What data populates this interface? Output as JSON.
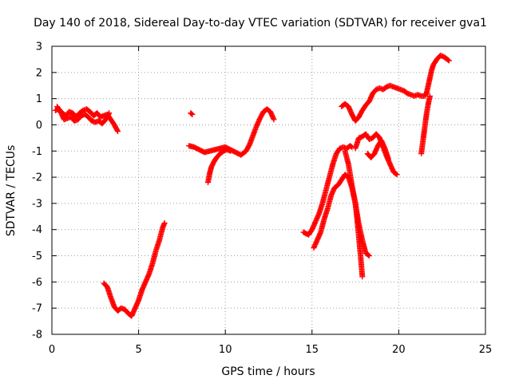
{
  "chart_data": {
    "type": "scatter",
    "title": "Day 140 of 2018, Sidereal Day-to-day VTEC variation (SDTVAR) for receiver gva1",
    "xlabel": "GPS time / hours",
    "ylabel": "SDTVAR / TECUs",
    "xlim": [
      0,
      25
    ],
    "ylim": [
      -8,
      3
    ],
    "xticks": [
      "0",
      "5",
      "10",
      "15",
      "20",
      "25"
    ],
    "yticks": [
      "-8",
      "-7",
      "-6",
      "-5",
      "-4",
      "-3",
      "-2",
      "-1",
      "0",
      "1",
      "2",
      "3"
    ],
    "grid": true,
    "marker": "plus",
    "color": "#ff0000",
    "segments": [
      [
        [
          0.2,
          0.55
        ],
        [
          0.4,
          0.6
        ],
        [
          0.6,
          0.45
        ],
        [
          0.8,
          0.35
        ],
        [
          1.0,
          0.5
        ],
        [
          1.2,
          0.45
        ],
        [
          1.4,
          0.3
        ],
        [
          1.6,
          0.45
        ],
        [
          1.8,
          0.55
        ],
        [
          2.0,
          0.6
        ],
        [
          2.2,
          0.5
        ],
        [
          2.4,
          0.35
        ],
        [
          2.6,
          0.45
        ],
        [
          2.8,
          0.3
        ],
        [
          3.0,
          0.35
        ],
        [
          3.2,
          0.4
        ],
        [
          3.4,
          0.2
        ],
        [
          3.6,
          0.0
        ],
        [
          3.8,
          -0.25
        ]
      ],
      [
        [
          0.3,
          0.7
        ],
        [
          0.5,
          0.5
        ],
        [
          0.7,
          0.2
        ],
        [
          0.9,
          0.25
        ],
        [
          1.1,
          0.3
        ],
        [
          1.3,
          0.15
        ],
        [
          1.5,
          0.2
        ],
        [
          1.7,
          0.35
        ],
        [
          1.9,
          0.4
        ],
        [
          2.1,
          0.3
        ],
        [
          2.3,
          0.15
        ],
        [
          2.5,
          0.1
        ],
        [
          2.7,
          0.15
        ],
        [
          2.9,
          0.05
        ],
        [
          3.1,
          0.2
        ],
        [
          3.3,
          0.45
        ]
      ],
      [
        [
          3.0,
          -6.05
        ],
        [
          3.2,
          -6.2
        ],
        [
          3.4,
          -6.6
        ],
        [
          3.6,
          -6.95
        ],
        [
          3.8,
          -7.1
        ],
        [
          4.0,
          -7.0
        ],
        [
          4.2,
          -7.05
        ],
        [
          4.4,
          -7.2
        ],
        [
          4.6,
          -7.3
        ],
        [
          4.8,
          -7.0
        ],
        [
          5.0,
          -6.7
        ],
        [
          5.2,
          -6.3
        ],
        [
          5.4,
          -6.0
        ],
        [
          5.6,
          -5.7
        ],
        [
          5.8,
          -5.3
        ],
        [
          6.0,
          -4.8
        ],
        [
          6.2,
          -4.4
        ],
        [
          6.4,
          -3.9
        ],
        [
          6.5,
          -3.75
        ]
      ],
      [
        [
          8.0,
          0.45
        ],
        [
          8.1,
          0.4
        ]
      ],
      [
        [
          7.9,
          -0.8
        ],
        [
          8.2,
          -0.85
        ],
        [
          8.5,
          -0.95
        ],
        [
          8.8,
          -1.05
        ],
        [
          9.1,
          -1.0
        ],
        [
          9.4,
          -0.95
        ],
        [
          9.7,
          -0.9
        ],
        [
          10.0,
          -0.85
        ],
        [
          10.3,
          -0.95
        ],
        [
          10.6,
          -1.05
        ],
        [
          10.9,
          -1.15
        ],
        [
          11.2,
          -1.0
        ],
        [
          11.4,
          -0.75
        ],
        [
          11.6,
          -0.4
        ],
        [
          11.8,
          -0.05
        ],
        [
          12.0,
          0.25
        ],
        [
          12.2,
          0.5
        ],
        [
          12.4,
          0.6
        ],
        [
          12.6,
          0.5
        ],
        [
          12.8,
          0.2
        ]
      ],
      [
        [
          9.0,
          -2.2
        ],
        [
          9.1,
          -1.85
        ],
        [
          9.2,
          -1.6
        ],
        [
          9.35,
          -1.4
        ],
        [
          9.5,
          -1.25
        ],
        [
          9.7,
          -1.1
        ],
        [
          9.9,
          -1.0
        ],
        [
          10.1,
          -0.95
        ],
        [
          10.3,
          -1.0
        ]
      ],
      [
        [
          14.5,
          -4.1
        ],
        [
          14.8,
          -4.2
        ],
        [
          15.0,
          -4.0
        ],
        [
          15.2,
          -3.7
        ],
        [
          15.4,
          -3.4
        ],
        [
          15.6,
          -3.0
        ],
        [
          15.8,
          -2.5
        ],
        [
          16.0,
          -2.0
        ],
        [
          16.2,
          -1.5
        ],
        [
          16.4,
          -1.1
        ],
        [
          16.6,
          -0.9
        ],
        [
          16.8,
          -0.85
        ],
        [
          17.0,
          -0.9
        ],
        [
          17.2,
          -0.8
        ],
        [
          17.3,
          -0.85
        ]
      ],
      [
        [
          15.1,
          -4.7
        ],
        [
          15.3,
          -4.4
        ],
        [
          15.5,
          -4.1
        ],
        [
          15.7,
          -3.6
        ],
        [
          15.9,
          -3.2
        ],
        [
          16.1,
          -2.7
        ],
        [
          16.3,
          -2.4
        ],
        [
          16.5,
          -2.3
        ],
        [
          16.7,
          -2.1
        ],
        [
          16.9,
          -1.9
        ],
        [
          17.1,
          -2.0
        ],
        [
          17.3,
          -2.4
        ],
        [
          17.5,
          -3.0
        ],
        [
          17.6,
          -3.6
        ],
        [
          17.7,
          -4.3
        ],
        [
          17.8,
          -5.0
        ],
        [
          17.9,
          -5.8
        ]
      ],
      [
        [
          17.5,
          -0.9
        ],
        [
          17.7,
          -0.5
        ],
        [
          17.9,
          -0.45
        ],
        [
          18.1,
          -0.35
        ],
        [
          18.3,
          -0.55
        ],
        [
          18.5,
          -0.5
        ],
        [
          18.7,
          -0.35
        ],
        [
          18.9,
          -0.5
        ],
        [
          19.1,
          -0.85
        ],
        [
          19.3,
          -1.2
        ],
        [
          19.5,
          -1.5
        ],
        [
          19.7,
          -1.8
        ],
        [
          19.9,
          -1.9
        ]
      ],
      [
        [
          16.9,
          -1.0
        ],
        [
          17.1,
          -1.5
        ],
        [
          17.3,
          -2.3
        ],
        [
          17.5,
          -3.0
        ],
        [
          17.7,
          -3.8
        ],
        [
          17.9,
          -4.4
        ],
        [
          18.1,
          -4.9
        ],
        [
          18.3,
          -5.0
        ]
      ],
      [
        [
          18.2,
          -1.1
        ],
        [
          18.4,
          -1.25
        ],
        [
          18.6,
          -1.1
        ],
        [
          18.8,
          -0.8
        ],
        [
          19.0,
          -0.6
        ],
        [
          19.2,
          -0.9
        ],
        [
          19.4,
          -1.3
        ]
      ],
      [
        [
          16.7,
          0.7
        ],
        [
          16.9,
          0.8
        ],
        [
          17.1,
          0.7
        ],
        [
          17.3,
          0.4
        ],
        [
          17.5,
          0.15
        ],
        [
          17.7,
          0.3
        ],
        [
          17.9,
          0.55
        ],
        [
          18.1,
          0.75
        ],
        [
          18.3,
          0.9
        ],
        [
          18.5,
          1.2
        ],
        [
          18.7,
          1.35
        ],
        [
          18.9,
          1.4
        ],
        [
          19.1,
          1.35
        ],
        [
          19.3,
          1.45
        ],
        [
          19.5,
          1.5
        ],
        [
          19.7,
          1.45
        ],
        [
          19.9,
          1.4
        ],
        [
          20.1,
          1.35
        ],
        [
          20.3,
          1.3
        ],
        [
          20.5,
          1.2
        ],
        [
          20.7,
          1.15
        ],
        [
          20.9,
          1.1
        ],
        [
          21.1,
          1.15
        ],
        [
          21.3,
          1.1
        ],
        [
          21.5,
          1.1
        ],
        [
          21.6,
          1.2
        ],
        [
          21.7,
          1.5
        ],
        [
          21.8,
          1.8
        ],
        [
          21.9,
          2.1
        ],
        [
          22.0,
          2.3
        ],
        [
          22.2,
          2.5
        ],
        [
          22.4,
          2.65
        ],
        [
          22.6,
          2.6
        ],
        [
          22.8,
          2.5
        ],
        [
          22.9,
          2.45
        ]
      ],
      [
        [
          21.3,
          -1.1
        ],
        [
          21.4,
          -0.6
        ],
        [
          21.5,
          -0.1
        ],
        [
          21.6,
          0.4
        ],
        [
          21.7,
          0.8
        ],
        [
          21.8,
          1.1
        ]
      ]
    ]
  }
}
